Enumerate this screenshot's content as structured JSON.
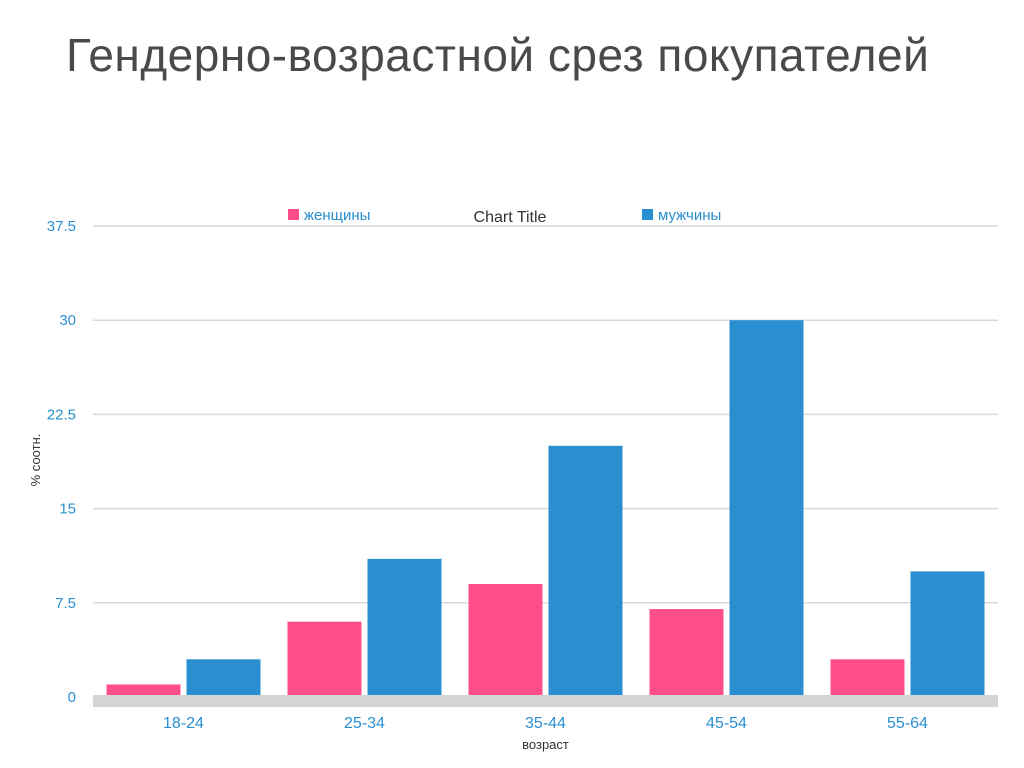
{
  "slide": {
    "title": "Гендерно-возрастной срез покупателей"
  },
  "chart_data": {
    "type": "bar",
    "title": "Chart Title",
    "xlabel": "возраст",
    "ylabel": "% соотн.",
    "categories": [
      "18-24",
      "25-34",
      "35-44",
      "45-54",
      "55-64"
    ],
    "series": [
      {
        "name": "женщины",
        "values": [
          1,
          6,
          9,
          7,
          3
        ],
        "color": "#ff4f8b"
      },
      {
        "name": "мужчины",
        "values": [
          3,
          11,
          20,
          30,
          10
        ],
        "color": "#2a8fd0"
      }
    ],
    "ylim": [
      0,
      37.5
    ],
    "yticks": [
      "0",
      "7.5",
      "15",
      "22.5",
      "30",
      "37.5"
    ],
    "grid": true,
    "legend_position": "top"
  }
}
